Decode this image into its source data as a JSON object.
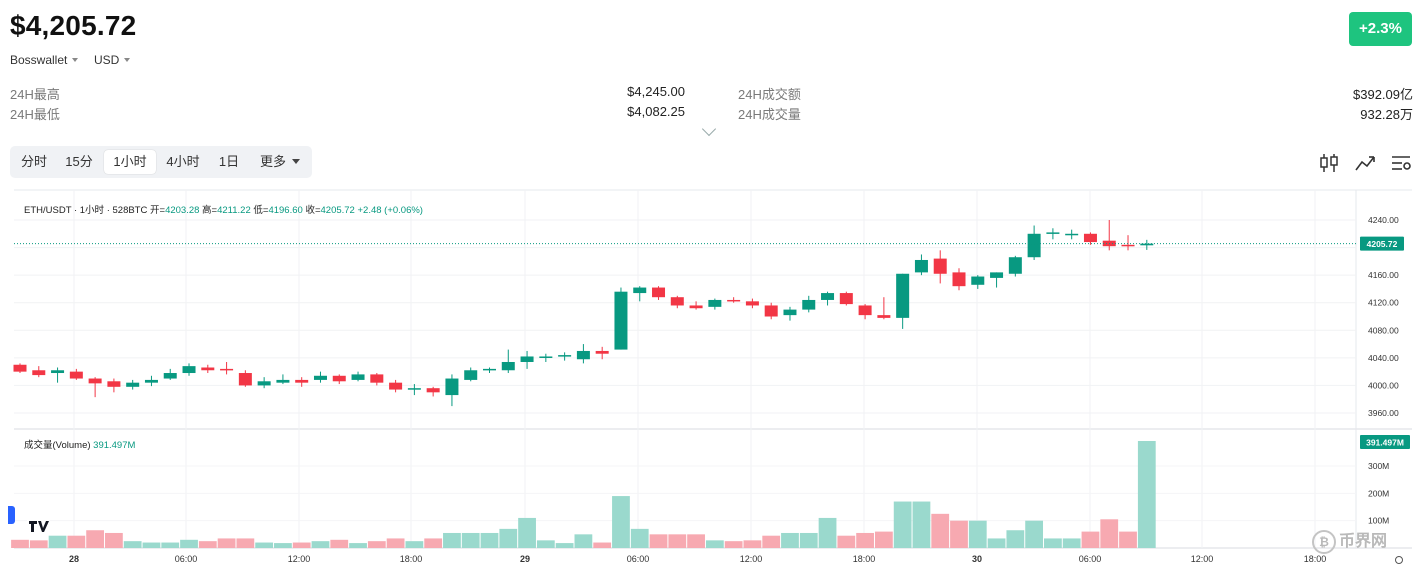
{
  "header": {
    "price": "$4,205.72",
    "wallet": "Bosswallet",
    "currency": "USD",
    "change": "+2.3%"
  },
  "stats": {
    "high_label": "24H最高",
    "high_value": "$4,245.00",
    "low_label": "24H最低",
    "low_value": "$4,082.25",
    "turnover_label": "24H成交额",
    "turnover_value": "$392.09亿",
    "volume_label": "24H成交量",
    "volume_value": "932.28万"
  },
  "tabs": [
    "分时",
    "15分",
    "1小时",
    "4小时",
    "1日",
    "更多"
  ],
  "active_tab": "1小时",
  "toolbar_icons": [
    "candlestick-icon",
    "indicator-icon",
    "settings-icon"
  ],
  "legend": {
    "symbol": "ETH/USDT · 1小时 · 528BTC",
    "open_label": "开=",
    "open": "4203.28",
    "high_label": "高=",
    "high": "4211.22",
    "low_label": "低=",
    "low": "4196.60",
    "close_label": "收=",
    "close": "4205.72",
    "change": "+2.48 (+0.06%)"
  },
  "volume_legend": {
    "label": "成交量(Volume)",
    "value": "391.497M"
  },
  "watermark": "币界网",
  "colors": {
    "up": "#089981",
    "down": "#f23645",
    "up_vol": "#9ad9cd",
    "down_vol": "#f7a9b1",
    "badge": "#1ec47f"
  },
  "chart_data": {
    "type": "candlestick",
    "interval": "1小时",
    "last_price": 4205.72,
    "price_ticks": [
      4240,
      4200,
      4160,
      4120,
      4080,
      4040,
      4000,
      3960
    ],
    "price_tick_labels": [
      "4240.00",
      "4200.00",
      "4160.00",
      "4120.00",
      "4080.00",
      "4040.00",
      "4000.00",
      "3960.00"
    ],
    "last_price_label": "4205.72",
    "volume_ticks": [
      300,
      200,
      100
    ],
    "volume_tick_labels": [
      "300M",
      "200M",
      "100M"
    ],
    "last_volume_label": "391.497M",
    "x_tick_labels": [
      "28",
      "06:00",
      "12:00",
      "18:00",
      "29",
      "06:00",
      "12:00",
      "18:00",
      "30",
      "06:00",
      "12:00",
      "18:00"
    ],
    "candles": [
      {
        "o": 4030,
        "h": 4032,
        "l": 4018,
        "c": 4020,
        "v": 30
      },
      {
        "o": 4022,
        "h": 4028,
        "l": 4012,
        "c": 4015,
        "v": 28
      },
      {
        "o": 4018,
        "h": 4026,
        "l": 4004,
        "c": 4022,
        "v": 45
      },
      {
        "o": 4020,
        "h": 4024,
        "l": 4008,
        "c": 4010,
        "v": 45
      },
      {
        "o": 4010,
        "h": 4012,
        "l": 3983,
        "c": 4003,
        "v": 65
      },
      {
        "o": 4006,
        "h": 4010,
        "l": 3990,
        "c": 3998,
        "v": 55
      },
      {
        "o": 3998,
        "h": 4008,
        "l": 3994,
        "c": 4004,
        "v": 25
      },
      {
        "o": 4004,
        "h": 4014,
        "l": 3999,
        "c": 4008,
        "v": 20
      },
      {
        "o": 4010,
        "h": 4024,
        "l": 4008,
        "c": 4018,
        "v": 20
      },
      {
        "o": 4018,
        "h": 4032,
        "l": 4014,
        "c": 4028,
        "v": 30
      },
      {
        "o": 4026,
        "h": 4030,
        "l": 4018,
        "c": 4022,
        "v": 25
      },
      {
        "o": 4024,
        "h": 4034,
        "l": 4016,
        "c": 4022,
        "v": 35
      },
      {
        "o": 4018,
        "h": 4022,
        "l": 3998,
        "c": 4000,
        "v": 35
      },
      {
        "o": 4000,
        "h": 4012,
        "l": 3996,
        "c": 4006,
        "v": 20
      },
      {
        "o": 4004,
        "h": 4016,
        "l": 4002,
        "c": 4008,
        "v": 18
      },
      {
        "o": 4008,
        "h": 4012,
        "l": 3998,
        "c": 4004,
        "v": 20
      },
      {
        "o": 4008,
        "h": 4020,
        "l": 4004,
        "c": 4014,
        "v": 25
      },
      {
        "o": 4014,
        "h": 4016,
        "l": 4002,
        "c": 4006,
        "v": 30
      },
      {
        "o": 4008,
        "h": 4020,
        "l": 4006,
        "c": 4016,
        "v": 18
      },
      {
        "o": 4016,
        "h": 4018,
        "l": 4000,
        "c": 4004,
        "v": 25
      },
      {
        "o": 4004,
        "h": 4008,
        "l": 3990,
        "c": 3994,
        "v": 35
      },
      {
        "o": 3996,
        "h": 4002,
        "l": 3986,
        "c": 3996,
        "v": 25
      },
      {
        "o": 3996,
        "h": 3998,
        "l": 3984,
        "c": 3990,
        "v": 35
      },
      {
        "o": 3986,
        "h": 4016,
        "l": 3970,
        "c": 4010,
        "v": 55
      },
      {
        "o": 4008,
        "h": 4026,
        "l": 4006,
        "c": 4022,
        "v": 55
      },
      {
        "o": 4022,
        "h": 4026,
        "l": 4018,
        "c": 4024,
        "v": 55
      },
      {
        "o": 4022,
        "h": 4052,
        "l": 4018,
        "c": 4034,
        "v": 70
      },
      {
        "o": 4034,
        "h": 4050,
        "l": 4024,
        "c": 4042,
        "v": 110
      },
      {
        "o": 4040,
        "h": 4046,
        "l": 4034,
        "c": 4042,
        "v": 28
      },
      {
        "o": 4042,
        "h": 4048,
        "l": 4036,
        "c": 4044,
        "v": 18
      },
      {
        "o": 4038,
        "h": 4060,
        "l": 4032,
        "c": 4050,
        "v": 50
      },
      {
        "o": 4050,
        "h": 4056,
        "l": 4038,
        "c": 4046,
        "v": 20
      },
      {
        "o": 4052,
        "h": 4142,
        "l": 4052,
        "c": 4136,
        "v": 190
      },
      {
        "o": 4134,
        "h": 4144,
        "l": 4122,
        "c": 4142,
        "v": 70
      },
      {
        "o": 4142,
        "h": 4144,
        "l": 4124,
        "c": 4128,
        "v": 50
      },
      {
        "o": 4128,
        "h": 4130,
        "l": 4112,
        "c": 4116,
        "v": 50
      },
      {
        "o": 4116,
        "h": 4122,
        "l": 4110,
        "c": 4112,
        "v": 50
      },
      {
        "o": 4114,
        "h": 4126,
        "l": 4110,
        "c": 4124,
        "v": 28
      },
      {
        "o": 4124,
        "h": 4128,
        "l": 4120,
        "c": 4122,
        "v": 25
      },
      {
        "o": 4122,
        "h": 4126,
        "l": 4112,
        "c": 4116,
        "v": 28
      },
      {
        "o": 4116,
        "h": 4120,
        "l": 4096,
        "c": 4100,
        "v": 45
      },
      {
        "o": 4102,
        "h": 4114,
        "l": 4094,
        "c": 4110,
        "v": 55
      },
      {
        "o": 4110,
        "h": 4130,
        "l": 4106,
        "c": 4124,
        "v": 55
      },
      {
        "o": 4124,
        "h": 4136,
        "l": 4116,
        "c": 4134,
        "v": 110
      },
      {
        "o": 4134,
        "h": 4136,
        "l": 4116,
        "c": 4118,
        "v": 45
      },
      {
        "o": 4116,
        "h": 4118,
        "l": 4096,
        "c": 4102,
        "v": 55
      },
      {
        "o": 4102,
        "h": 4128,
        "l": 4096,
        "c": 4098,
        "v": 60
      },
      {
        "o": 4098,
        "h": 4162,
        "l": 4082,
        "c": 4162,
        "v": 170
      },
      {
        "o": 4164,
        "h": 4190,
        "l": 4160,
        "c": 4182,
        "v": 170
      },
      {
        "o": 4184,
        "h": 4196,
        "l": 4148,
        "c": 4162,
        "v": 125
      },
      {
        "o": 4164,
        "h": 4170,
        "l": 4138,
        "c": 4144,
        "v": 100
      },
      {
        "o": 4146,
        "h": 4160,
        "l": 4140,
        "c": 4158,
        "v": 100
      },
      {
        "o": 4156,
        "h": 4164,
        "l": 4142,
        "c": 4164,
        "v": 35
      },
      {
        "o": 4162,
        "h": 4188,
        "l": 4158,
        "c": 4186,
        "v": 65
      },
      {
        "o": 4186,
        "h": 4232,
        "l": 4182,
        "c": 4220,
        "v": 100
      },
      {
        "o": 4220,
        "h": 4228,
        "l": 4212,
        "c": 4222,
        "v": 35
      },
      {
        "o": 4220,
        "h": 4226,
        "l": 4212,
        "c": 4220,
        "v": 35
      },
      {
        "o": 4220,
        "h": 4222,
        "l": 4204,
        "c": 4208,
        "v": 60
      },
      {
        "o": 4210,
        "h": 4240,
        "l": 4196,
        "c": 4202,
        "v": 105
      },
      {
        "o": 4204,
        "h": 4218,
        "l": 4196,
        "c": 4203,
        "v": 60
      },
      {
        "o": 4203.28,
        "h": 4211.22,
        "l": 4196.6,
        "c": 4205.72,
        "v": 391.497
      }
    ]
  }
}
